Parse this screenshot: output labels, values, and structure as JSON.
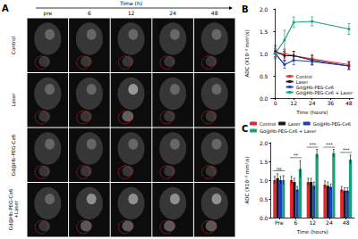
{
  "panel_a": {
    "label": "A",
    "header": "Time (h)",
    "columns": [
      "pre",
      "6",
      "12",
      "24",
      "48"
    ],
    "rows": [
      "Control",
      "Laser",
      "Gd@Hb-PEG-Ce6",
      "Gd@Hb-PEG-Ce6 +Laser"
    ]
  },
  "chart_data": [
    {
      "type": "line",
      "title": "B",
      "x_label": "Time (hours)",
      "y_label": "ADC (X10⁻³ mm²/s)",
      "x": [
        0,
        6,
        12,
        24,
        48
      ],
      "xlim": [
        -3,
        51
      ],
      "xticks": [
        0,
        12,
        24,
        36,
        48
      ],
      "ylim": [
        0,
        2
      ],
      "yticks": [
        {
          "value": 0,
          "label": "0.0"
        },
        {
          "value": 0.5,
          "label": "0.5"
        },
        {
          "value": 1,
          "label": "1.0"
        },
        {
          "value": 1.5,
          "label": "1.5"
        },
        {
          "value": 2,
          "label": "2.0"
        }
      ],
      "grid": false,
      "legend": "lower right",
      "series": [
        {
          "name": "Control",
          "color": "#e8262a",
          "marker": "circle",
          "line_style": "solid",
          "values": [
            1.0,
            1.0,
            0.95,
            0.88,
            0.75
          ],
          "errors": [
            0.1,
            0.1,
            0.1,
            0.1,
            0.08
          ]
        },
        {
          "name": "Laser",
          "color": "#1a1a1a",
          "marker": "circle",
          "line_style": "solid",
          "values": [
            1.05,
            0.95,
            0.95,
            0.85,
            0.72
          ],
          "errors": [
            0.12,
            0.1,
            0.1,
            0.1,
            0.08
          ]
        },
        {
          "name": "Gd@Hb-PEG-Ce6",
          "color": "#1f3fbf",
          "marker": "circle",
          "line_style": "solid",
          "values": [
            1.0,
            0.75,
            0.85,
            0.82,
            0.72
          ],
          "errors": [
            0.1,
            0.08,
            0.1,
            0.08,
            0.08
          ]
        },
        {
          "name": "Gd@Hb-PEG-Ce6 + Laser",
          "color": "#19a07a",
          "marker": "circle",
          "line_style": "solid",
          "values": [
            1.0,
            1.3,
            1.7,
            1.72,
            1.55
          ],
          "errors": [
            0.12,
            0.22,
            0.12,
            0.1,
            0.12
          ]
        }
      ]
    },
    {
      "type": "bar",
      "title": "C",
      "x_label": "Time (hours)",
      "y_label": "ADC (X10⁻³ mm²/s)",
      "categories": [
        "Pre",
        "6",
        "12",
        "24",
        "48"
      ],
      "ylim": [
        0,
        2
      ],
      "yticks": [
        {
          "value": 0,
          "label": "0.0"
        },
        {
          "value": 0.5,
          "label": "0.5"
        },
        {
          "value": 1,
          "label": "1.0"
        },
        {
          "value": 1.5,
          "label": "1.5"
        },
        {
          "value": 2,
          "label": "2.0"
        }
      ],
      "grid": false,
      "legend": "top",
      "series": [
        {
          "name": "Control",
          "color": "#e8262a",
          "values": [
            1.0,
            1.0,
            0.95,
            0.88,
            0.75
          ],
          "errors": [
            0.1,
            0.1,
            0.1,
            0.1,
            0.08
          ]
        },
        {
          "name": "Laser",
          "color": "#1a1a1a",
          "values": [
            1.05,
            0.95,
            0.95,
            0.85,
            0.72
          ],
          "errors": [
            0.12,
            0.1,
            0.1,
            0.1,
            0.08
          ]
        },
        {
          "name": "Gd@Hb-PEG-Ce6",
          "color": "#1f3fbf",
          "values": [
            1.0,
            0.75,
            0.85,
            0.82,
            0.72
          ],
          "errors": [
            0.1,
            0.08,
            0.1,
            0.08,
            0.08
          ]
        },
        {
          "name": "Gd@Hb-PEG-Ce6 + Laser",
          "color": "#19a07a",
          "values": [
            1.0,
            1.3,
            1.7,
            1.72,
            1.55
          ],
          "errors": [
            0.12,
            0.22,
            0.12,
            0.1,
            0.12
          ]
        }
      ],
      "annotations": [
        {
          "x": "Pre",
          "y": 1.25,
          "text": "ns"
        },
        {
          "x": "6",
          "y": 1.6,
          "text": "**"
        },
        {
          "x": "12",
          "y": 1.88,
          "text": "***"
        },
        {
          "x": "24",
          "y": 1.88,
          "text": "***"
        },
        {
          "x": "48",
          "y": 1.74,
          "text": "***"
        }
      ]
    }
  ]
}
